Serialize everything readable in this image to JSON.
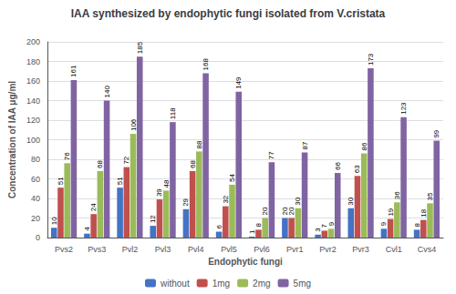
{
  "chart_data": {
    "type": "bar",
    "title": "IAA synthesized by endophytic fungi isolated from V.cristata",
    "xlabel": "Endophytic fungi",
    "ylabel": "Concentration of IAA μg/ml",
    "categories": [
      "Pvs2",
      "Pvs3",
      "Pvl2",
      "Pvl3",
      "Pvl4",
      "Pvl5",
      "Pvl6",
      "Pvr1",
      "Pvr2",
      "Pvr3",
      "Cvl1",
      "Cvs4"
    ],
    "series": [
      {
        "name": "without",
        "color": "#4472C4",
        "values": [
          10,
          4,
          51,
          12,
          29,
          6,
          1,
          20,
          3,
          30,
          9,
          8
        ]
      },
      {
        "name": "1mg",
        "color": "#C0504D",
        "values": [
          51,
          24,
          72,
          39,
          68,
          32,
          8,
          20,
          7,
          63,
          19,
          18
        ]
      },
      {
        "name": "2mg",
        "color": "#9BBB59",
        "values": [
          76,
          68,
          106,
          48,
          88,
          54,
          20,
          30,
          9,
          86,
          36,
          35
        ]
      },
      {
        "name": "5mg",
        "color": "#8064A2",
        "values": [
          161,
          140,
          185,
          118,
          168,
          149,
          77,
          87,
          66,
          173,
          123,
          99
        ]
      }
    ],
    "ylim": [
      0,
      200
    ],
    "yticks": [
      0,
      20,
      40,
      60,
      80,
      100,
      120,
      140,
      160,
      180,
      200
    ],
    "grid": true,
    "legend": "bottom",
    "data_labels": true
  }
}
